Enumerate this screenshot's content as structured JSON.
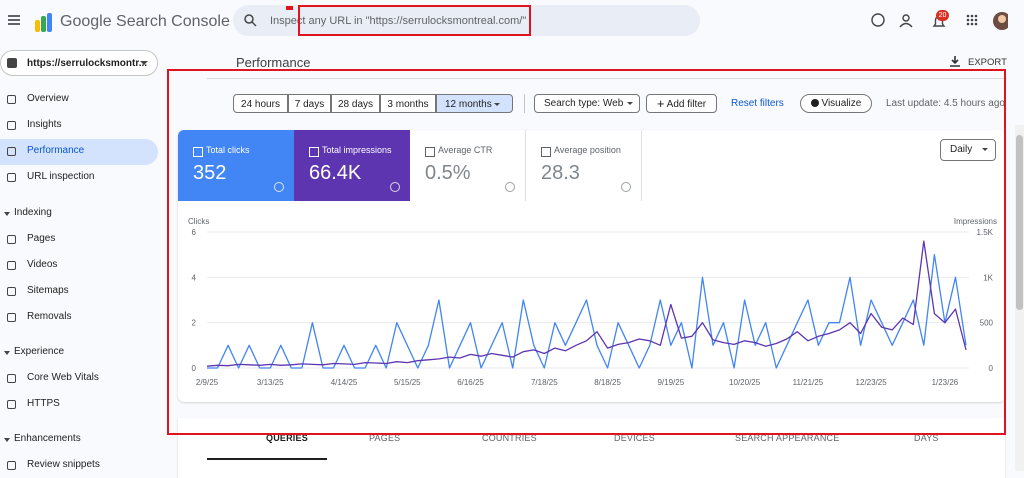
{
  "header": {
    "product": "Google Search Console",
    "search_placeholder": "Inspect any URL in \"https://serrulocksmontreal.com/\"",
    "notification_count": "20"
  },
  "sidebar": {
    "property": "https://serrulocksmontr...",
    "items": [
      {
        "label": "Overview",
        "top": 100,
        "kind": "item"
      },
      {
        "label": "Insights",
        "top": 126,
        "kind": "item"
      },
      {
        "label": "Performance",
        "top": 152,
        "kind": "active"
      },
      {
        "label": "URL inspection",
        "top": 178,
        "kind": "item"
      },
      {
        "label": "Indexing",
        "top": 214,
        "kind": "section"
      },
      {
        "label": "Pages",
        "top": 240,
        "kind": "item"
      },
      {
        "label": "Videos",
        "top": 266,
        "kind": "item"
      },
      {
        "label": "Sitemaps",
        "top": 292,
        "kind": "item"
      },
      {
        "label": "Removals",
        "top": 318,
        "kind": "item"
      },
      {
        "label": "Experience",
        "top": 353,
        "kind": "section"
      },
      {
        "label": "Core Web Vitals",
        "top": 379,
        "kind": "item"
      },
      {
        "label": "HTTPS",
        "top": 405,
        "kind": "item"
      },
      {
        "label": "Enhancements",
        "top": 440,
        "kind": "section"
      },
      {
        "label": "Review snippets",
        "top": 466,
        "kind": "item"
      }
    ]
  },
  "page": {
    "title": "Performance",
    "export": "EXPORT"
  },
  "filters": {
    "date_ranges": [
      "24 hours",
      "7 days",
      "28 days",
      "3 months",
      "12 months"
    ],
    "active_range": 4,
    "search_type": "Search type: Web",
    "add_filter": "Add filter",
    "reset": "Reset filters",
    "visualize": "Visualize",
    "last_update": "Last update: 4.5 hours ago"
  },
  "metrics": [
    {
      "label": "Total clicks",
      "value": "352",
      "color": "#4285f4",
      "checked": true
    },
    {
      "label": "Total impressions",
      "value": "66.4K",
      "color": "#5e35b1",
      "checked": true
    },
    {
      "label": "Average CTR",
      "value": "0.5%",
      "color": "#ffffff",
      "checked": false
    },
    {
      "label": "Average position",
      "value": "28.3",
      "color": "#ffffff",
      "checked": false
    }
  ],
  "granularity": "Daily",
  "chart_data": {
    "type": "line",
    "categories": [
      "2/9/25",
      null,
      null,
      null,
      null,
      null,
      "3/13/25",
      null,
      null,
      null,
      null,
      null,
      null,
      "4/14/25",
      null,
      null,
      null,
      null,
      null,
      "5/15/25",
      null,
      null,
      null,
      null,
      null,
      "6/16/25",
      null,
      null,
      null,
      null,
      null,
      null,
      "7/18/25",
      null,
      null,
      null,
      null,
      null,
      "8/18/25",
      null,
      null,
      null,
      null,
      null,
      "9/19/25",
      null,
      null,
      null,
      null,
      null,
      null,
      "10/20/25",
      null,
      null,
      null,
      null,
      null,
      "11/21/25",
      null,
      null,
      null,
      null,
      null,
      "12/23/25",
      null,
      null,
      null,
      null,
      null,
      null,
      "1/23/26",
      null,
      null
    ],
    "series": [
      {
        "name": "Clicks",
        "color": "#4285f4",
        "values": [
          0,
          0,
          1,
          0,
          1,
          0,
          0,
          1,
          0,
          0,
          2,
          0,
          0,
          1,
          0,
          0,
          1,
          0,
          2,
          1,
          0,
          1,
          3,
          0,
          1,
          2,
          0,
          1,
          2,
          0,
          3,
          1,
          0,
          2,
          1,
          2,
          3,
          1,
          0,
          2,
          1,
          0,
          1,
          3,
          1,
          2,
          0,
          4,
          1,
          2,
          0,
          3,
          1,
          2,
          0,
          1,
          2,
          3,
          1,
          2,
          2,
          4,
          1,
          3,
          2,
          1,
          2,
          3,
          1,
          5,
          2,
          4,
          1
        ]
      },
      {
        "name": "Impressions",
        "color": "#5e35b1",
        "axis": "y2",
        "values": [
          20,
          30,
          25,
          40,
          35,
          30,
          40,
          30,
          35,
          45,
          40,
          35,
          50,
          45,
          40,
          60,
          55,
          50,
          70,
          60,
          80,
          90,
          100,
          120,
          110,
          150,
          130,
          160,
          140,
          120,
          180,
          200,
          160,
          220,
          190,
          250,
          300,
          400,
          220,
          260,
          280,
          320,
          300,
          250,
          700,
          330,
          350,
          500,
          310,
          280,
          260,
          300,
          280,
          240,
          270,
          320,
          400,
          300,
          350,
          380,
          420,
          500,
          380,
          600,
          450,
          420,
          550,
          480,
          1400,
          600,
          500,
          650,
          200
        ]
      }
    ],
    "ylim": [
      0,
      6
    ],
    "yticks": [
      0,
      2,
      4,
      6
    ],
    "y2lim": [
      0,
      1500
    ],
    "y2ticks": [
      0,
      500,
      {
        "value": 1000,
        "label": "1K"
      },
      {
        "value": 1500,
        "label": "1.5K"
      }
    ],
    "grid": true
  },
  "tabs": [
    "QUERIES",
    "PAGES",
    "COUNTRIES",
    "DEVICES",
    "SEARCH APPEARANCE",
    "DAYS"
  ]
}
